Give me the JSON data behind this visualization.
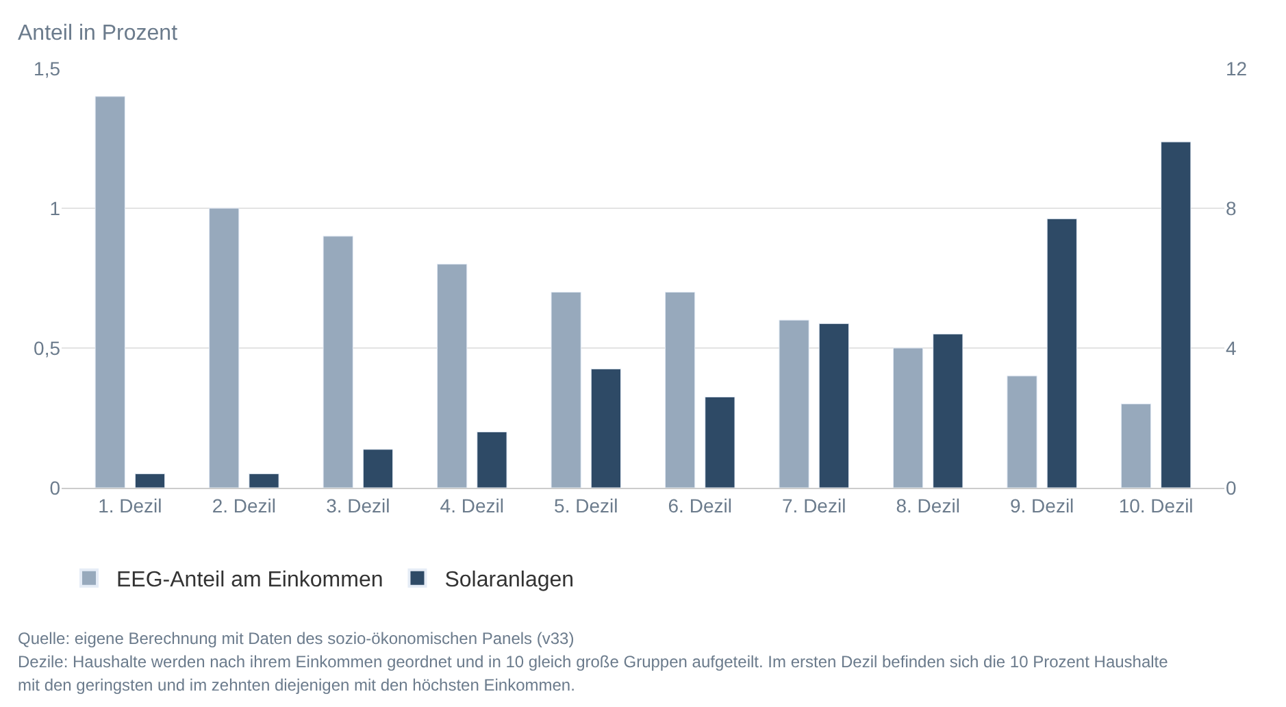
{
  "chart_data": {
    "type": "bar",
    "ylabel": "Anteil in Prozent",
    "categories": [
      "1. Dezil",
      "2. Dezil",
      "3. Dezil",
      "4. Dezil",
      "5. Dezil",
      "6. Dezil",
      "7. Dezil",
      "8. Dezil",
      "9. Dezil",
      "10. Dezil"
    ],
    "series": [
      {
        "name": "EEG-Anteil am Einkommen",
        "color": "#97a9bc",
        "values": [
          1.4,
          1.0,
          0.9,
          0.8,
          0.7,
          0.7,
          0.6,
          0.5,
          0.4,
          0.3
        ]
      },
      {
        "name": "Solaranlagen",
        "color": "#2e4a66",
        "axis": "y2",
        "values": [
          0.4,
          0.4,
          1.1,
          1.6,
          3.4,
          2.6,
          4.7,
          4.4,
          7.7,
          9.9
        ]
      }
    ],
    "ylim": [
      0,
      1.5
    ],
    "yticks": [
      0,
      {
        "value": 0.5,
        "label": "0,5"
      },
      1,
      {
        "value": 1.5,
        "label": "1,5"
      }
    ],
    "y2lim": [
      0,
      12
    ],
    "y2ticks": [
      0,
      4,
      8,
      12
    ],
    "grid": "y",
    "legend": "bottom left",
    "annotations": [
      "Quelle: eigene Berechnung mit Daten des sozio-ökonomischen Panels (v33)",
      "Dezile: Haushalte werden nach ihrem Einkommen geordnet und in 10 gleich große Gruppen aufgeteilt. Im ersten Dezil befinden sich die 10 Prozent Haushalte",
      "mit den geringsten und im zehnten diejenigen mit den höchsten Einkommen."
    ]
  }
}
